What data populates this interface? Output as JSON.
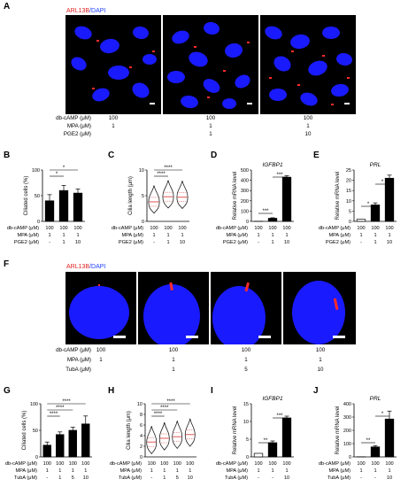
{
  "panels": {
    "A": {
      "label": "A",
      "stain_red": "ARL13B",
      "stain_blue": "DAPI",
      "conditions": [
        {
          "name": "db-cAMP (μM)",
          "values": [
            "100",
            "100",
            "100"
          ]
        },
        {
          "name": "MPA (μM)",
          "values": [
            "1",
            "1",
            "1"
          ]
        },
        {
          "name": "PGE2 (μM)",
          "values": [
            "",
            "1",
            "10"
          ]
        }
      ]
    },
    "B": {
      "label": "B",
      "ylabel": "Ciliated cells (%)",
      "sig": [
        "*",
        "*"
      ],
      "conditions": [
        {
          "name": "db-cAMP (μM)",
          "values": [
            "100",
            "100",
            "100"
          ]
        },
        {
          "name": "MPA (μM)",
          "values": [
            "1",
            "1",
            "1"
          ]
        },
        {
          "name": "PGE2 (μM)",
          "values": [
            "-",
            "1",
            "10"
          ]
        }
      ]
    },
    "C": {
      "label": "C",
      "ylabel": "Cilia length (μm)",
      "sig": [
        "****",
        "****"
      ],
      "conditions": [
        {
          "name": "db-cAMP (μM)",
          "values": [
            "100",
            "100",
            "100"
          ]
        },
        {
          "name": "MPA (μM)",
          "values": [
            "1",
            "1",
            "1"
          ]
        },
        {
          "name": "PGE2 (μM)",
          "values": [
            "-",
            "1",
            "10"
          ]
        }
      ]
    },
    "D": {
      "label": "D",
      "title": "IGFBP1",
      "ylabel": "Relative mRNA level",
      "sig": [
        "***",
        "***"
      ],
      "conditions": [
        {
          "name": "db-cAMP (μM)",
          "values": [
            "100",
            "100",
            "100"
          ]
        },
        {
          "name": "MPA (μM)",
          "values": [
            "1",
            "1",
            "1"
          ]
        },
        {
          "name": "PGE2 (μM)",
          "values": [
            "-",
            "1",
            "10"
          ]
        }
      ]
    },
    "E": {
      "label": "E",
      "title": "PRL",
      "ylabel": "Relative mRNA level",
      "sig": [
        "*",
        "*"
      ],
      "conditions": [
        {
          "name": "db-cAMP (μM)",
          "values": [
            "100",
            "100",
            "100"
          ]
        },
        {
          "name": "MPA (μM)",
          "values": [
            "1",
            "1",
            "1"
          ]
        },
        {
          "name": "PGE2 (μM)",
          "values": [
            "-",
            "1",
            "10"
          ]
        }
      ]
    },
    "F": {
      "label": "F",
      "stain_red": "ARL13B",
      "stain_blue": "DAPI",
      "conditions": [
        {
          "name": "db-cAMP (μM)",
          "values": [
            "100",
            "100",
            "100",
            "100"
          ]
        },
        {
          "name": "MPA (μM)",
          "values": [
            "1",
            "1",
            "1",
            "1"
          ]
        },
        {
          "name": "TubA (μM)",
          "values": [
            "",
            "1",
            "5",
            "10"
          ]
        }
      ]
    },
    "G": {
      "label": "G",
      "ylabel": "Ciliated cells (%)",
      "sig": [
        "****",
        "****",
        "****"
      ],
      "conditions": [
        {
          "name": "db-cAMP (μM)",
          "values": [
            "100",
            "100",
            "100",
            "100"
          ]
        },
        {
          "name": "MPA (μM)",
          "values": [
            "1",
            "1",
            "1",
            "1"
          ]
        },
        {
          "name": "TubA (μM)",
          "values": [
            "-",
            "1",
            "5",
            "10"
          ]
        }
      ]
    },
    "H": {
      "label": "H",
      "ylabel": "Cilia length (μm)",
      "sig": [
        "****",
        "****",
        "****"
      ],
      "conditions": [
        {
          "name": "db-cAMP (μM)",
          "values": [
            "100",
            "100",
            "100",
            "100"
          ]
        },
        {
          "name": "MPA (μM)",
          "values": [
            "1",
            "1",
            "1",
            "1"
          ]
        },
        {
          "name": "TubA (μM)",
          "values": [
            "-",
            "1",
            "5",
            "10"
          ]
        }
      ]
    },
    "I": {
      "label": "I",
      "title": "IGFBP1",
      "ylabel": "Relative mRNA level",
      "sig": [
        "**",
        "***"
      ],
      "conditions": [
        {
          "name": "db-cAMP (μM)",
          "values": [
            "100",
            "100",
            "100"
          ]
        },
        {
          "name": "MPA (μM)",
          "values": [
            "1",
            "1",
            "1"
          ]
        },
        {
          "name": "TubA (μM)",
          "values": [
            "-",
            "-",
            "10"
          ]
        }
      ]
    },
    "J": {
      "label": "J",
      "title": "PRL",
      "ylabel": "Relative mRNA level",
      "sig": [
        "**",
        "*"
      ],
      "conditions": [
        {
          "name": "db-cAMP (μM)",
          "values": [
            "100",
            "100",
            "100"
          ]
        },
        {
          "name": "MPA (μM)",
          "values": [
            "1",
            "1",
            "1"
          ]
        },
        {
          "name": "TubA (μM)",
          "values": [
            "-",
            "-",
            "10"
          ]
        }
      ]
    }
  },
  "colors": {
    "nucleus": "#1a1aff",
    "cilia": "#ff2a2a",
    "bar": "#000000",
    "violin_line": "#e04040"
  },
  "chart_data": [
    {
      "panel": "B",
      "type": "bar",
      "categories": [
        "1",
        "2",
        "3"
      ],
      "values": [
        40,
        60,
        55
      ],
      "errors": [
        12,
        10,
        8
      ],
      "ylabel": "Ciliated cells (%)",
      "ylim": [
        0,
        100
      ],
      "yticks": [
        0,
        50,
        100
      ]
    },
    {
      "panel": "C",
      "type": "violin",
      "categories": [
        "1",
        "2",
        "3"
      ],
      "medians": [
        3.8,
        4.8,
        4.7
      ],
      "ylabel": "Cilia length (μm)",
      "ylim": [
        0,
        10
      ],
      "yticks": [
        0,
        5,
        10
      ]
    },
    {
      "panel": "D",
      "type": "bar",
      "categories": [
        "1",
        "2",
        "3"
      ],
      "values": [
        1,
        30,
        430
      ],
      "errors": [
        0,
        5,
        15
      ],
      "title": "IGFBP1",
      "ylabel": "Relative mRNA level",
      "ylim": [
        0,
        500
      ],
      "yticks": [
        0,
        100,
        200,
        300,
        400,
        500
      ]
    },
    {
      "panel": "E",
      "type": "bar",
      "categories": [
        "1",
        "2",
        "3"
      ],
      "values": [
        1,
        8,
        21
      ],
      "errors": [
        0,
        1,
        1.5
      ],
      "title": "PRL",
      "ylabel": "Relative mRNA level",
      "ylim": [
        0,
        25
      ],
      "yticks": [
        0,
        5,
        10,
        15,
        20,
        25
      ]
    },
    {
      "panel": "G",
      "type": "bar",
      "categories": [
        "1",
        "2",
        "3",
        "4"
      ],
      "values": [
        22,
        42,
        50,
        62
      ],
      "errors": [
        6,
        5,
        6,
        15
      ],
      "ylabel": "Ciliated cells (%)",
      "ylim": [
        0,
        100
      ],
      "yticks": [
        0,
        50,
        100
      ]
    },
    {
      "panel": "H",
      "type": "violin",
      "categories": [
        "1",
        "2",
        "3",
        "4"
      ],
      "medians": [
        2.8,
        3.5,
        3.8,
        4.2
      ],
      "ylabel": "Cilia length (μm)",
      "ylim": [
        0,
        10
      ],
      "yticks": [
        0,
        2,
        4,
        6,
        8,
        10
      ]
    },
    {
      "panel": "I",
      "type": "bar",
      "categories": [
        "1",
        "2",
        "3"
      ],
      "values": [
        1,
        4,
        11
      ],
      "errors": [
        0,
        0.5,
        0.5
      ],
      "title": "IGFBP1",
      "ylabel": "Relative mRNA level",
      "ylim": [
        0,
        15
      ],
      "yticks": [
        0,
        5,
        10,
        15
      ]
    },
    {
      "panel": "J",
      "type": "bar",
      "categories": [
        "1",
        "2",
        "3"
      ],
      "values": [
        1,
        75,
        285
      ],
      "errors": [
        0,
        10,
        60
      ],
      "title": "PRL",
      "ylabel": "Relative mRNA level",
      "ylim": [
        0,
        400
      ],
      "yticks": [
        0,
        100,
        200,
        300,
        400
      ]
    }
  ]
}
